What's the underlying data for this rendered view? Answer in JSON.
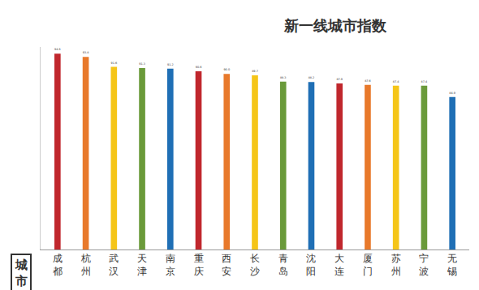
{
  "chart_data": {
    "type": "bar",
    "title": "新一线城市指数",
    "xlabel": "城市",
    "categories": [
      "成都",
      "杭州",
      "武汉",
      "天津",
      "南京",
      "重庆",
      "西安",
      "长沙",
      "青岛",
      "沈阳",
      "大连",
      "厦门",
      "苏州",
      "宁波",
      "无锡"
    ],
    "values": [
      94.5,
      93.8,
      91.6,
      91.3,
      91.2,
      90.6,
      90.0,
      89.7,
      88.3,
      88.2,
      87.9,
      87.6,
      87.4,
      87.4,
      84.9
    ],
    "value_labels": [
      "94.5",
      "93.8",
      "91.6",
      "91.3",
      "91.2",
      "90.6",
      "90.0",
      "89.7",
      "88.3",
      "88.2",
      "87.9",
      "87.6",
      "87.4",
      "87.4",
      "84.9"
    ],
    "colors": [
      "#c0272d",
      "#e8792b",
      "#f5c518",
      "#6a9a3a",
      "#1f6fb5",
      "#c0272d",
      "#e8792b",
      "#f5c518",
      "#6a9a3a",
      "#1f6fb5",
      "#c0272d",
      "#e8792b",
      "#f5c518",
      "#6a9a3a",
      "#1f6fb5"
    ],
    "ylim": [
      51,
      96
    ],
    "yticks": [],
    "grid": false,
    "data_labels": true,
    "tick_labels": "x"
  }
}
